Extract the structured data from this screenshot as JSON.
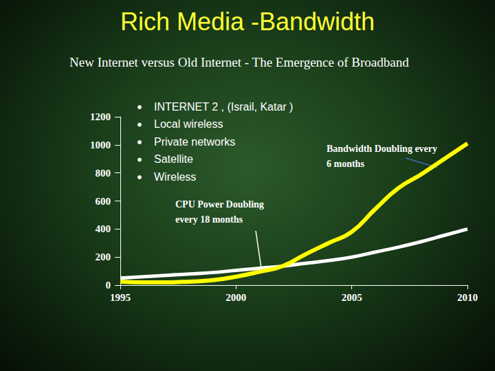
{
  "chart_data": {
    "type": "line",
    "title": "Rich Media -Bandwidth",
    "subtitle": "New Internet versus Old Internet - The Emergence of Broadband",
    "x": [
      1995,
      1996,
      1997,
      1998,
      1999,
      2000,
      2001,
      2002,
      2003,
      2004,
      2005,
      2006,
      2007,
      2008,
      2009,
      2010
    ],
    "series": [
      {
        "name": "CPU Power Doubling every 18 months",
        "color": "#ffffff",
        "values": [
          50,
          60,
          70,
          80,
          90,
          105,
          120,
          135,
          155,
          175,
          200,
          235,
          270,
          310,
          355,
          400
        ]
      },
      {
        "name": "Bandwidth Doubling every 6 months",
        "color": "#ffff00",
        "values": [
          25,
          20,
          20,
          25,
          35,
          60,
          95,
          135,
          220,
          300,
          380,
          540,
          690,
          790,
          900,
          1010
        ]
      }
    ],
    "xlim": [
      1995,
      2010
    ],
    "xticks": [
      1995,
      2000,
      2005,
      2010
    ],
    "ylim": [
      0,
      1200
    ],
    "yticks": [
      0,
      200,
      400,
      600,
      800,
      1000,
      1200
    ],
    "grid": false,
    "annotations": [
      "INTERNET 2 , (Israil, Katar )",
      "Local wireless",
      "Private networks",
      "Satellite",
      "Wireless"
    ]
  }
}
